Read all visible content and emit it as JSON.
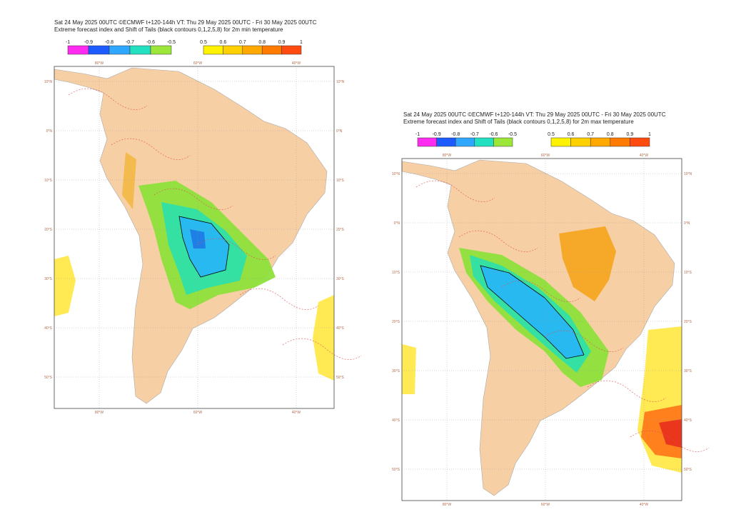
{
  "panels": [
    {
      "title_line1": "Sat 24 May 2025 00UTC ©ECMWF t+120-144h  VT: Thu 29 May 2025 00UTC - Fri 30 May 2025 00UTC",
      "title_line2": "Extreme forecast index and Shift of Tails (black contours 0,1,2,5,8) for 2m min temperature",
      "colorbar_negative": [
        "-1",
        "-0.9",
        "-0.8",
        "-0.7",
        "-0.6",
        "-0.5"
      ],
      "colorbar_positive": [
        "0.5",
        "0.6",
        "0.7",
        "0.8",
        "0.9",
        "1"
      ],
      "longitudes": [
        "80°W",
        "60°W",
        "40°W"
      ],
      "latitudes": [
        "10°N",
        "0°N",
        "10°S",
        "20°S",
        "30°S",
        "40°S",
        "50°S"
      ]
    },
    {
      "title_line1": "Sat 24 May 2025 00UTC ©ECMWF t+120-144h  VT: Thu 29 May 2025 00UTC - Fri 30 May 2025 00UTC",
      "title_line2": "Extreme forecast index and Shift of Tails (black contours 0,1,2,5,8) for 2m max temperature",
      "colorbar_negative": [
        "-1",
        "-0.9",
        "-0.8",
        "-0.7",
        "-0.6",
        "-0.5"
      ],
      "colorbar_positive": [
        "0.5",
        "0.6",
        "0.7",
        "0.8",
        "0.9",
        "1"
      ],
      "longitudes": [
        "80°W",
        "60°W",
        "40°W"
      ],
      "latitudes": [
        "10°N",
        "0°N",
        "10°S",
        "20°S",
        "30°S",
        "40°S",
        "50°S"
      ]
    }
  ]
}
